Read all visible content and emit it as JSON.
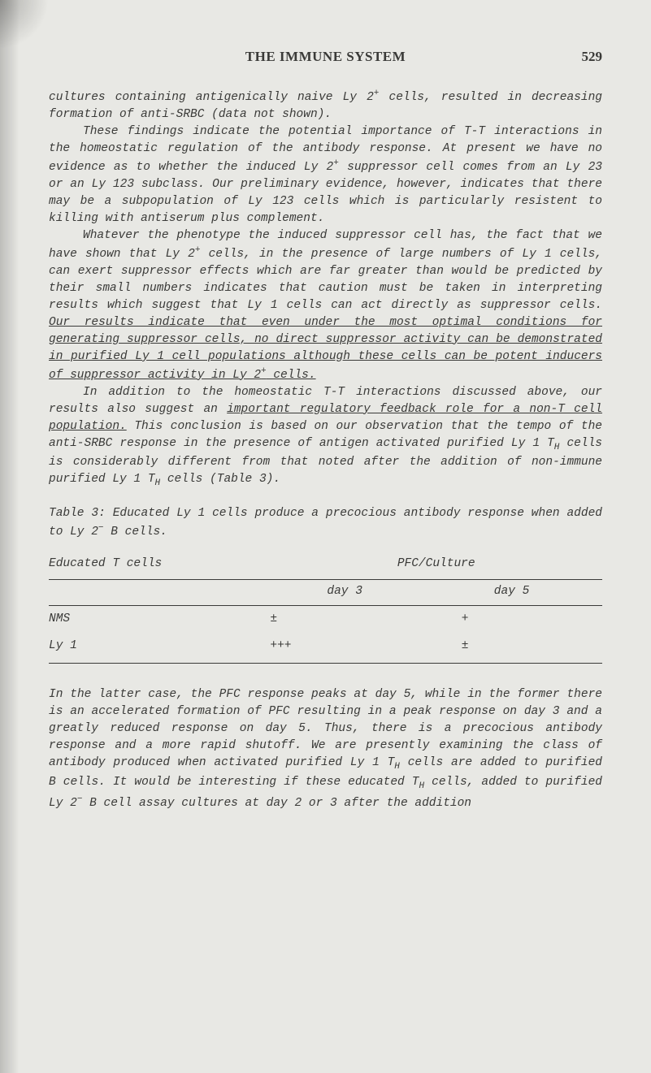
{
  "header": {
    "title": "THE IMMUNE SYSTEM",
    "page_number": "529"
  },
  "paragraphs": {
    "p1_a": "cultures containing antigenically naive Ly 2",
    "p1_sup": "+",
    "p1_b": " cells, resulted in decreasing formation of anti-SRBC (data not shown).",
    "p2_a": "These findings indicate the potential importance of T-T interactions in the homeostatic regulation of the antibody response. At present we have no evidence as to whether the induced Ly 2",
    "p2_sup": "+",
    "p2_b": " suppressor cell comes from an Ly 23 or an Ly 123 subclass. Our preliminary evidence, however, indicates that there may be a subpopulation of Ly 123 cells which is particularly resistent to killing with antiserum plus complement.",
    "p3_a": "Whatever the phenotype the induced suppressor cell has, the fact that we have shown that Ly 2",
    "p3_sup": "+",
    "p3_b": " cells, in the presence of large numbers of Ly 1 cells, can exert suppressor effects which are far greater than would be predicted by their small numbers indicates that caution must be taken in interpreting results which suggest that Ly 1 cells can act directly as suppressor cells. ",
    "p3_u1": "Our results indicate that even under the most optimal conditions for generating suppressor cells, no direct suppressor activity can be demonstrated in purified Ly 1 cell populations although these cells can be potent inducers of suppressor activity in Ly 2",
    "p3_u1_sup": "+",
    "p3_u1_end": " cells.",
    "p4_a": "In addition to the homeostatic T-T interactions discussed above, our results also suggest an ",
    "p4_u1": "important regulatory feedback role for a non-T cell population.",
    "p4_b": " This conclusion is based on our observation that the tempo of the anti-SRBC response in the presence of antigen activated purified Ly 1 T",
    "p4_sub1": "H",
    "p4_c": " cells is considerably different from that noted after the addition of non-immune purified Ly 1 T",
    "p4_sub2": "H",
    "p4_d": " cells (Table 3).",
    "p5_a": "In the latter case, the PFC response peaks at day 5, while in the former there is an accelerated formation of PFC resulting in a peak response on day 3 and a greatly reduced response on day 5. Thus, there is a precocious antibody response and a more rapid shutoff. We are presently examining the class of antibody produced when activated purified Ly 1 T",
    "p5_sub1": "H",
    "p5_b": " cells are added to purified B cells. It would be interesting if these educated T",
    "p5_sub2": "H",
    "p5_c": " cells, added to purified Ly 2",
    "p5_sup": "−",
    "p5_d": " B cell assay cultures at day 2 or 3 after the addition"
  },
  "table_caption_a": "Table 3: Educated Ly 1 cells produce a precocious antibody response when added to Ly 2",
  "table_caption_sup": "−",
  "table_caption_b": " B cells.",
  "table": {
    "header_left": "Educated T cells",
    "header_right": "PFC/Culture",
    "sub_day3": "day 3",
    "sub_day5": "day 5",
    "rows": [
      {
        "label": "NMS",
        "d3": "±",
        "d5": "+"
      },
      {
        "label": "Ly 1",
        "d3": "+++",
        "d5": "±"
      }
    ]
  }
}
